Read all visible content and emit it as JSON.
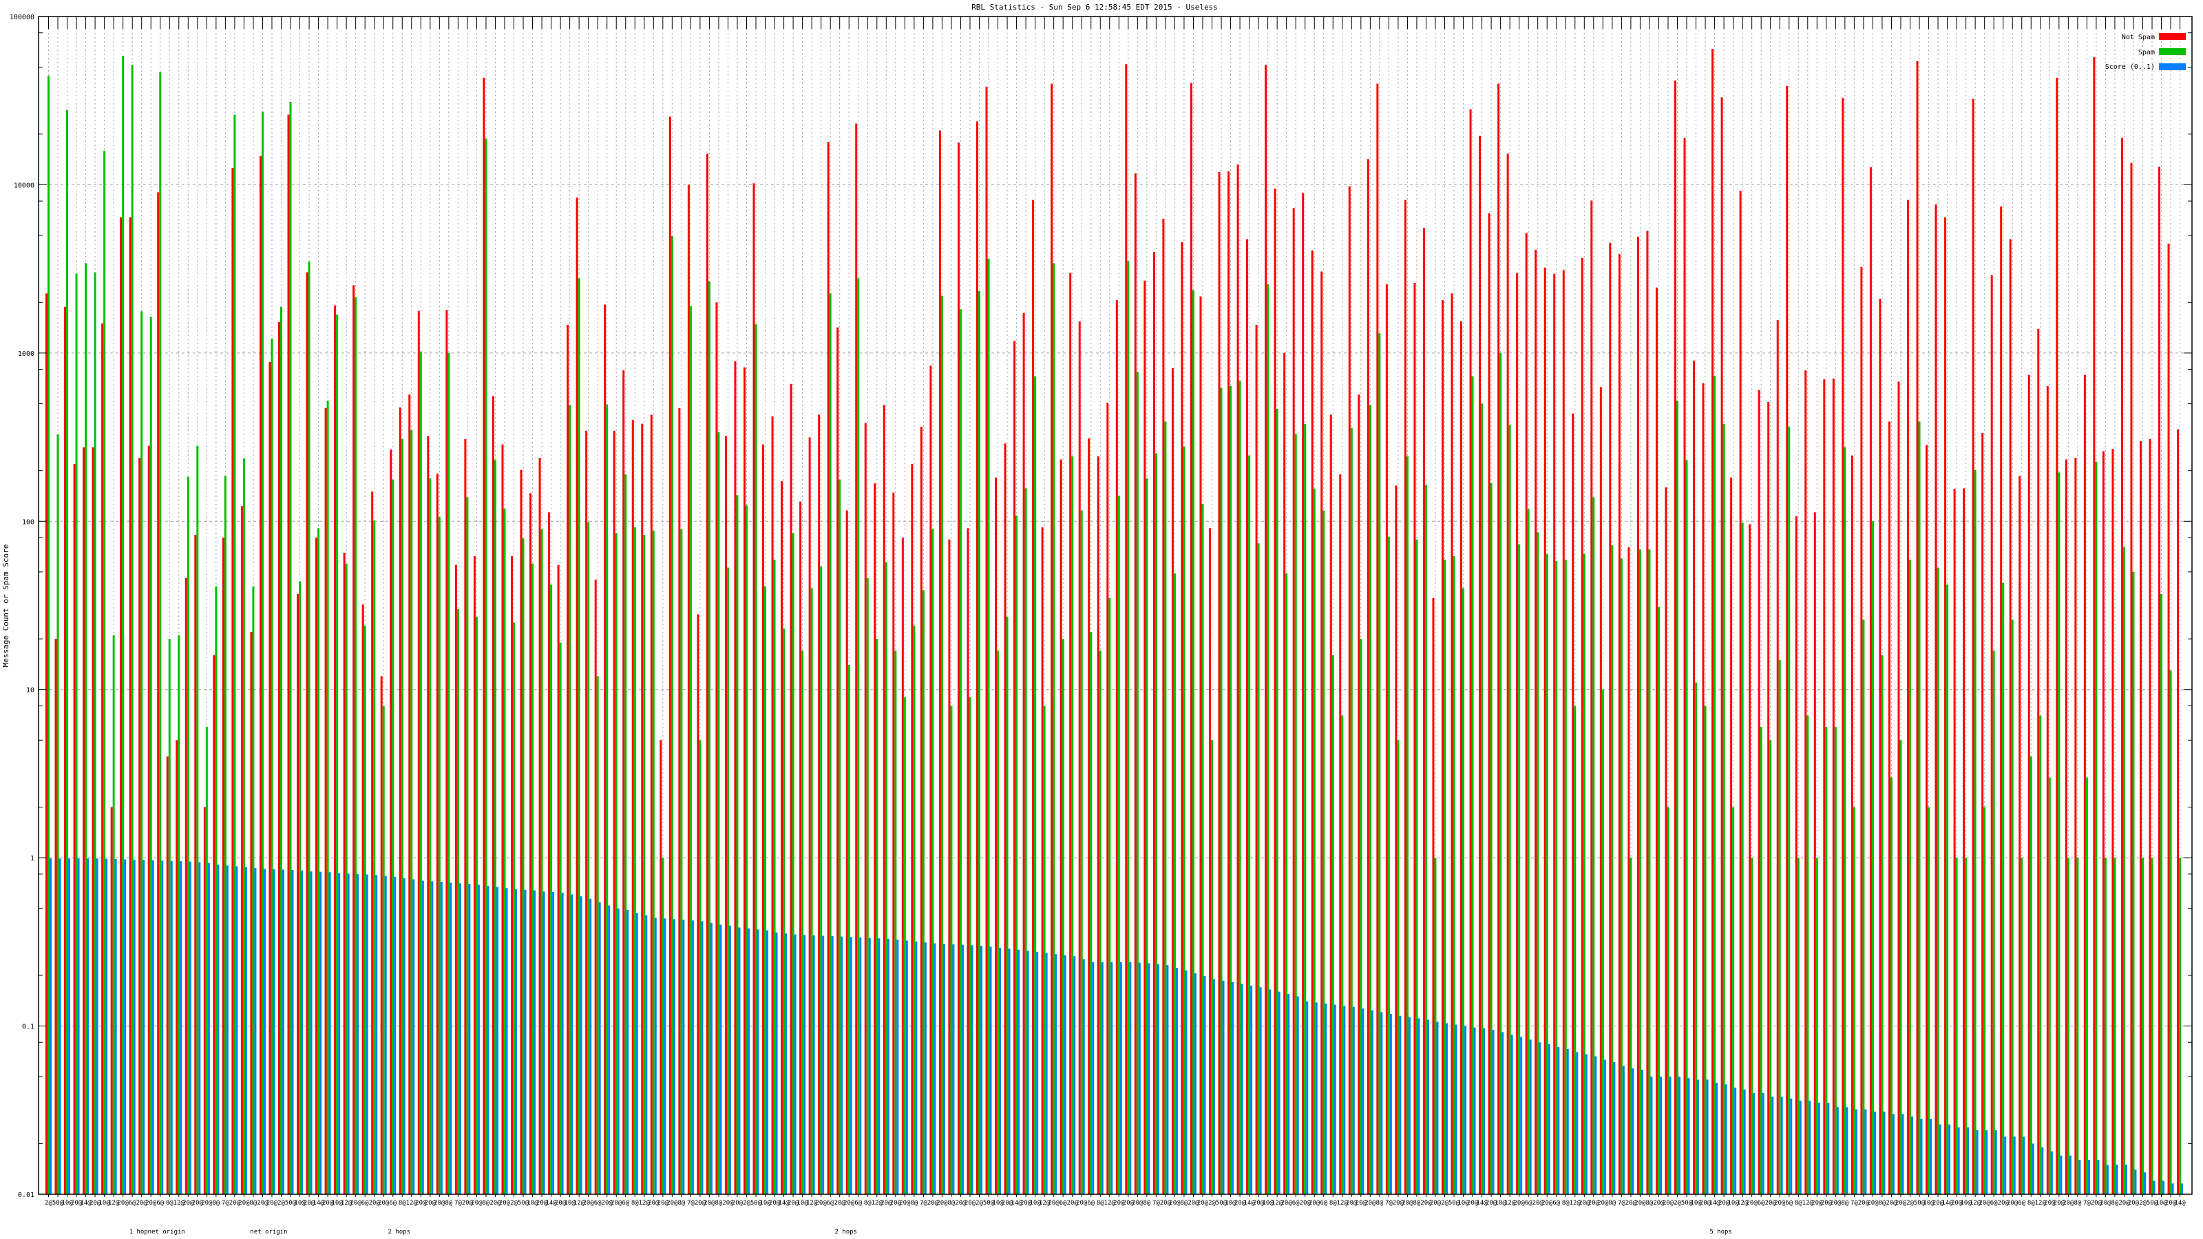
{
  "chart_data": {
    "type": "bar",
    "title": "RBL Statistics - Sun Sep  6 12:58:45 EDT 2015 - Useless",
    "xlabel": "",
    "ylabel": "Message Count or Spam Score",
    "yscale": "log",
    "ylim": [
      0.01,
      100000
    ],
    "yticks": [
      "100000",
      "10000",
      "1000",
      "100",
      "10",
      "1",
      "0.1",
      "0.01"
    ],
    "grid": true,
    "legend_position": "top-right",
    "legend": [
      "Not Spam",
      "Spam",
      "Score (0..1)"
    ],
    "colors": {
      "not_spam": "#ff0000",
      "spam": "#00c000",
      "score": "#0080ff"
    },
    "category_labels": [
      "2@",
      "50@",
      "10@",
      "20@",
      "14@",
      "20@",
      "10@",
      "12@",
      "20@",
      "6@",
      "20@",
      "20@",
      "6@",
      "8@",
      "12@",
      "20@",
      "20@",
      "20@",
      "8@",
      "7@",
      "20@",
      "20@",
      "8@",
      "20@",
      "20@"
    ],
    "category_sublabels": [
      "1 hop",
      "net origin",
      "net origin",
      "2 hops",
      "2 hops",
      "5 hops"
    ],
    "series": [
      {
        "name": "Not Spam",
        "values": [
          2260,
          20,
          1880,
          219,
          275,
          275,
          1500,
          2,
          6410,
          6410,
          238,
          281,
          9020,
          4,
          5,
          46,
          83,
          2,
          16,
          80,
          12600,
          123,
          22,
          14800,
          883,
          1530,
          26100,
          37,
          3020,
          80,
          471,
          1920,
          65,
          2530,
          32,
          150,
          12,
          267,
          475,
          566,
          1780,
          321,
          192,
          1800,
          55,
          308,
          62,
          43300,
          555,
          286,
          62,
          202,
          147,
          238,
          113,
          55,
          1470,
          8390,
          345,
          45,
          1940,
          345,
          790,
          400,
          380,
          430,
          5,
          25400,
          471,
          10000,
          28,
          15300,
          2000,
          321,
          893,
          822,
          10200,
          286,
          420,
          173,
          655,
          131,
          315,
          430,
          18000,
          1420,
          116,
          23100,
          383,
          168,
          491,
          148,
          80,
          219,
          364,
          840,
          21000,
          78,
          17800,
          91,
          23800,
          38300,
          182,
          290,
          1180,
          1730,
          8130,
          92,
          39900,
          233,
          2990,
          1540,
          311,
          243,
          506,
          2060,
          52100,
          11700,
          2690,
          3990,
          6280,
          813,
          4560,
          40300,
          2170,
          91,
          11900,
          12000,
          13200,
          4750,
          1470,
          51600,
          9500,
          1000,
          7270,
          8930,
          4070,
          3050,
          430,
          190,
          9790,
          566,
          14200,
          39900,
          2560,
          163,
          8130,
          2610,
          5540,
          35,
          2060,
          2260,
          1540,
          28100,
          19500,
          6760,
          39900,
          15300,
          2990,
          5160,
          4110,
          3220,
          2960,
          3110,
          437,
          3670,
          8050,
          628,
          4520,
          3870,
          70,
          4910,
          5320,
          2450,
          159,
          41600,
          19000,
          901,
          662,
          64100,
          33100,
          182,
          9200,
          96,
          603,
          512,
          1570,
          38600,
          107,
          790,
          113,
          697,
          705,
          32800,
          246,
          3250,
          12700,
          2100,
          391,
          676,
          8130,
          54300,
          284,
          7640,
          6410,
          156,
          157,
          32400,
          335,
          2900,
          7420,
          4750,
          186,
          741,
          1390,
          635,
          43300,
          233,
          238,
          741,
          57300,
          261,
          269,
          19000,
          13500,
          299,
          308,
          12800,
          4470,
          352
        ]
      },
      {
        "name": "Spam",
        "values": [
          44300,
          328,
          27800,
          2960,
          3420,
          3020,
          15900,
          21,
          58400,
          51600,
          1770,
          1640,
          46600,
          20,
          21,
          184,
          281,
          6,
          41,
          186,
          26100,
          236,
          41,
          27200,
          1220,
          1880,
          31100,
          44,
          3490,
          91,
          521,
          1690,
          56,
          2150,
          24,
          101,
          8,
          177,
          308,
          349,
          1020,
          180,
          106,
          1000,
          30,
          139,
          27,
          18800,
          231,
          119,
          25,
          79,
          56,
          90,
          42,
          19,
          491,
          2780,
          99,
          12,
          495,
          85,
          190,
          92,
          83,
          88,
          1,
          4960,
          90,
          1900,
          5,
          2670,
          338,
          53,
          143,
          124,
          1480,
          41,
          59,
          23,
          85,
          17,
          40,
          54,
          2260,
          177,
          14,
          2780,
          46,
          20,
          57,
          17,
          9,
          24,
          39,
          90,
          2190,
          8,
          1820,
          9,
          2330,
          3640,
          17,
          27,
          108,
          157,
          727,
          8,
          3420,
          20,
          243,
          116,
          22,
          17,
          35,
          142,
          3520,
          773,
          180,
          254,
          391,
          49,
          278,
          2360,
          127,
          5,
          622,
          635,
          683,
          246,
          74,
          2560,
          466,
          49,
          331,
          378,
          156,
          116,
          16,
          7,
          359,
          20,
          491,
          1310,
          81,
          5,
          243,
          78,
          164,
          1,
          59,
          62,
          40,
          727,
          501,
          169,
          1000,
          375,
          73,
          118,
          86,
          64,
          58,
          59,
          8,
          64,
          139,
          10,
          72,
          60,
          1,
          68,
          68,
          31,
          2,
          521,
          231,
          11,
          8,
          733,
          378,
          2,
          98,
          1,
          6,
          5,
          15,
          364,
          1,
          7,
          1,
          6,
          6,
          275,
          2,
          26,
          100,
          16,
          3,
          5,
          59,
          391,
          2,
          53,
          42,
          1,
          1,
          202,
          2,
          17,
          43,
          26,
          1,
          4,
          7,
          3,
          195,
          1,
          1,
          3,
          226,
          1,
          1,
          70,
          50,
          1,
          1,
          37,
          13,
          1
        ]
      },
      {
        "name": "Score (0..1)",
        "values": [
          0.99,
          0.99,
          0.99,
          0.99,
          0.99,
          0.99,
          0.986,
          0.982,
          0.978,
          0.974,
          0.97,
          0.966,
          0.962,
          0.958,
          0.954,
          0.95,
          0.94,
          0.93,
          0.91,
          0.9,
          0.89,
          0.88,
          0.87,
          0.86,
          0.855,
          0.85,
          0.845,
          0.84,
          0.83,
          0.825,
          0.82,
          0.81,
          0.805,
          0.8,
          0.795,
          0.79,
          0.78,
          0.77,
          0.755,
          0.745,
          0.73,
          0.725,
          0.72,
          0.71,
          0.705,
          0.7,
          0.69,
          0.68,
          0.67,
          0.66,
          0.65,
          0.645,
          0.64,
          0.63,
          0.625,
          0.62,
          0.605,
          0.59,
          0.57,
          0.545,
          0.52,
          0.5,
          0.49,
          0.47,
          0.455,
          0.44,
          0.436,
          0.432,
          0.428,
          0.424,
          0.42,
          0.41,
          0.4,
          0.395,
          0.385,
          0.38,
          0.375,
          0.37,
          0.36,
          0.355,
          0.35,
          0.348,
          0.346,
          0.344,
          0.342,
          0.34,
          0.338,
          0.336,
          0.334,
          0.332,
          0.33,
          0.326,
          0.322,
          0.318,
          0.314,
          0.31,
          0.308,
          0.306,
          0.304,
          0.302,
          0.3,
          0.296,
          0.292,
          0.288,
          0.284,
          0.28,
          0.276,
          0.272,
          0.268,
          0.264,
          0.26,
          0.25,
          0.24,
          0.24,
          0.24,
          0.24,
          0.24,
          0.238,
          0.236,
          0.233,
          0.23,
          0.222,
          0.214,
          0.206,
          0.198,
          0.19,
          0.186,
          0.182,
          0.178,
          0.174,
          0.17,
          0.165,
          0.16,
          0.155,
          0.15,
          0.14,
          0.138,
          0.136,
          0.134,
          0.132,
          0.13,
          0.127,
          0.124,
          0.121,
          0.118,
          0.115,
          0.113,
          0.111,
          0.109,
          0.106,
          0.104,
          0.102,
          0.1,
          0.098,
          0.097,
          0.095,
          0.092,
          0.089,
          0.086,
          0.083,
          0.08,
          0.078,
          0.075,
          0.073,
          0.07,
          0.068,
          0.066,
          0.063,
          0.061,
          0.058,
          0.056,
          0.055,
          0.05,
          0.05,
          0.05,
          0.05,
          0.049,
          0.048,
          0.048,
          0.046,
          0.045,
          0.043,
          0.042,
          0.04,
          0.04,
          0.038,
          0.038,
          0.037,
          0.036,
          0.036,
          0.035,
          0.035,
          0.033,
          0.033,
          0.032,
          0.032,
          0.031,
          0.031,
          0.03,
          0.03,
          0.029,
          0.028,
          0.028,
          0.026,
          0.026,
          0.025,
          0.025,
          0.024,
          0.024,
          0.024,
          0.022,
          0.022,
          0.022,
          0.02,
          0.019,
          0.018,
          0.017,
          0.017,
          0.016,
          0.016,
          0.016,
          0.015,
          0.015,
          0.015,
          0.014,
          0.0135,
          0.012,
          0.012,
          0.0116,
          0.0116
        ]
      }
    ]
  }
}
